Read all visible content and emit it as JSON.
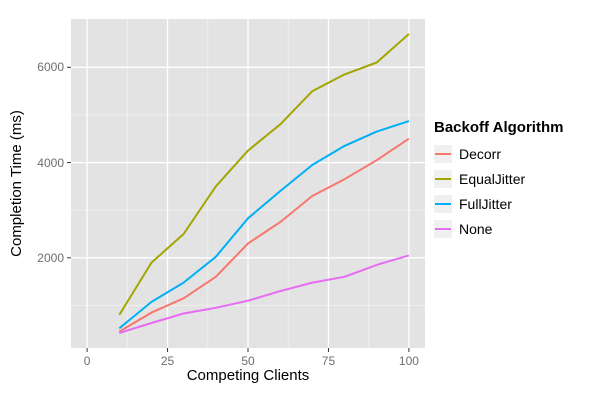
{
  "chart_data": {
    "type": "line",
    "title": "",
    "xlabel": "Competing Clients",
    "ylabel": "Completion Time (ms)",
    "legend_title": "Backoff Algorithm",
    "legend_position": "right",
    "grid": true,
    "x": [
      10,
      20,
      30,
      40,
      50,
      60,
      70,
      80,
      90,
      100
    ],
    "series": [
      {
        "name": "Decorr",
        "color": "#F8766D",
        "values": [
          450,
          850,
          1150,
          1600,
          2300,
          2750,
          3300,
          3650,
          4050,
          4500
        ]
      },
      {
        "name": "EqualJitter",
        "color": "#A3A500",
        "values": [
          800,
          1900,
          2500,
          3500,
          4250,
          4800,
          5500,
          5850,
          6100,
          6700
        ]
      },
      {
        "name": "FullJitter",
        "color": "#00B0F6",
        "values": [
          520,
          1075,
          1480,
          2020,
          2830,
          3400,
          3950,
          4350,
          4650,
          4870
        ]
      },
      {
        "name": "None",
        "color": "#E76BF3",
        "values": [
          420,
          630,
          830,
          950,
          1100,
          1300,
          1480,
          1600,
          1850,
          2050
        ]
      }
    ],
    "x_ticks": [
      0,
      25,
      50,
      75,
      100
    ],
    "y_ticks": [
      2000,
      4000,
      6000
    ],
    "x_minor_ticks": [
      12.5,
      37.5,
      62.5,
      87.5
    ],
    "y_minor_ticks": [
      1000,
      3000,
      5000
    ],
    "xlim": [
      -5,
      105
    ],
    "ylim": [
      106,
      7014
    ]
  },
  "style": {
    "panel_bg": "#e3e3e3",
    "major_grid": "#ffffff",
    "minor_grid": "#efefef",
    "tick_mark": "#333333",
    "axis_text": "#6e6e6e",
    "line_width": 2
  }
}
